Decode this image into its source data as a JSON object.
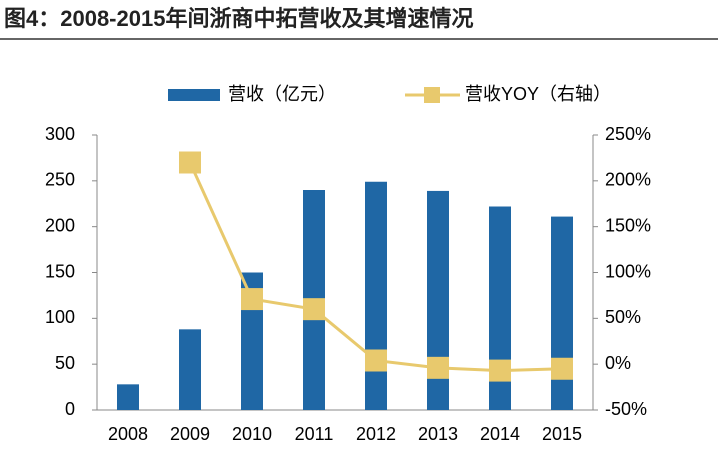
{
  "title": "图4：2008-2015年间浙商中拓营收及其增速情况",
  "chart_data": {
    "type": "bar-line",
    "categories": [
      "2008",
      "2009",
      "2010",
      "2011",
      "2012",
      "2013",
      "2014",
      "2015"
    ],
    "series": [
      {
        "name": "营收（亿元）",
        "type": "bar",
        "color": "#1f67a5",
        "values": [
          28,
          88,
          150,
          240,
          249,
          239,
          222,
          211
        ]
      },
      {
        "name": "营收YOY（右轴）",
        "type": "line",
        "axis": "y2",
        "color": "#e8c96d",
        "values": [
          null,
          220,
          71,
          60,
          4,
          -4,
          -7,
          -5
        ]
      }
    ],
    "ylim": [
      0,
      300
    ],
    "yticks": [
      0,
      50,
      100,
      150,
      200,
      250,
      300
    ],
    "y2lim": [
      -50,
      250
    ],
    "y2ticks": [
      {
        "value": -50,
        "label": "-50%"
      },
      {
        "value": 0,
        "label": "0%"
      },
      {
        "value": 50,
        "label": "50%"
      },
      {
        "value": 100,
        "label": "100%"
      },
      {
        "value": 150,
        "label": "150%"
      },
      {
        "value": 200,
        "label": "200%"
      },
      {
        "value": 250,
        "label": "250%"
      }
    ]
  }
}
